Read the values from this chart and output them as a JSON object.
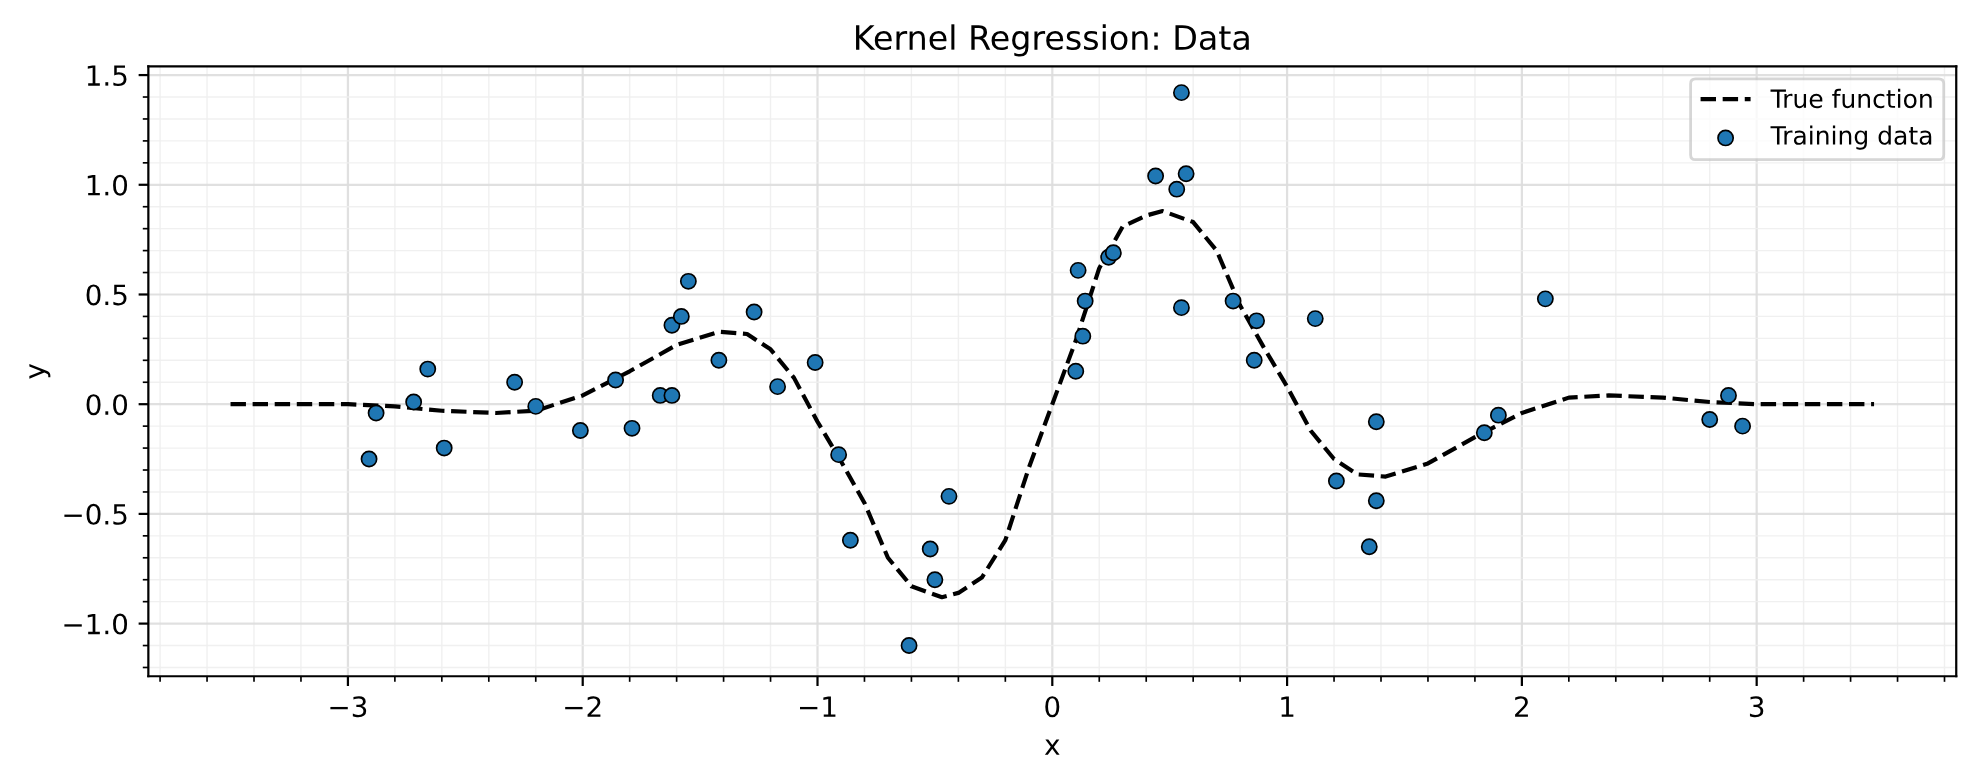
{
  "chart_data": {
    "type": "scatter",
    "title": "Kernel Regression: Data",
    "xlabel": "x",
    "ylabel": "y",
    "xlim": [
      -3.85,
      3.85
    ],
    "ylim": [
      -1.24,
      1.54
    ],
    "xticks": [
      {
        "value": -3,
        "label": "−3"
      },
      {
        "value": -2,
        "label": "−2"
      },
      {
        "value": -1,
        "label": "−1"
      },
      0,
      1,
      2,
      3
    ],
    "yticks": [
      {
        "value": -1,
        "label": "−1.0"
      },
      {
        "value": -0.5,
        "label": "−0.5"
      },
      {
        "value": 0,
        "label": "0.0"
      },
      0.5,
      {
        "value": 1,
        "label": "1.0"
      },
      1.5
    ],
    "grid": true,
    "legend": "top right",
    "series": [
      {
        "name": "True function",
        "type": "line",
        "color": "#000000",
        "line_style": "dashed",
        "marker": "none",
        "x": [
          -3.5,
          -3.0,
          -2.8,
          -2.6,
          -2.37,
          -2.2,
          -2.0,
          -1.8,
          -1.6,
          -1.42,
          -1.3,
          -1.2,
          -1.1,
          -1.0,
          -0.9,
          -0.8,
          -0.7,
          -0.6,
          -0.47,
          -0.4,
          -0.3,
          -0.2,
          -0.1,
          0.0,
          0.1,
          0.2,
          0.3,
          0.4,
          0.47,
          0.6,
          0.7,
          0.8,
          0.9,
          1.0,
          1.1,
          1.2,
          1.3,
          1.42,
          1.6,
          1.8,
          2.0,
          2.2,
          2.37,
          2.6,
          2.8,
          3.0,
          3.5
        ],
        "values": [
          0.0,
          0.0,
          -0.01,
          -0.03,
          -0.04,
          -0.03,
          0.04,
          0.15,
          0.27,
          0.33,
          0.32,
          0.25,
          0.12,
          -0.08,
          -0.26,
          -0.45,
          -0.7,
          -0.83,
          -0.88,
          -0.86,
          -0.79,
          -0.62,
          -0.29,
          0.0,
          0.29,
          0.62,
          0.81,
          0.86,
          0.88,
          0.83,
          0.7,
          0.45,
          0.26,
          0.08,
          -0.12,
          -0.25,
          -0.32,
          -0.33,
          -0.27,
          -0.15,
          -0.04,
          0.03,
          0.04,
          0.03,
          0.01,
          0.0,
          0.0
        ]
      },
      {
        "name": "Training data",
        "color": "#1f77b4",
        "marker": "circle",
        "x": [
          -2.91,
          -2.88,
          -2.72,
          -2.66,
          -2.59,
          -2.29,
          -2.2,
          -2.01,
          -1.86,
          -1.79,
          -1.67,
          -1.62,
          -1.62,
          -1.58,
          -1.55,
          -1.42,
          -1.27,
          -1.17,
          -1.01,
          -0.91,
          -0.86,
          -0.61,
          -0.52,
          -0.5,
          -0.44,
          0.1,
          0.11,
          0.13,
          0.14,
          0.24,
          0.26,
          0.44,
          0.53,
          0.55,
          0.55,
          0.57,
          0.77,
          0.87,
          0.86,
          1.12,
          1.21,
          1.38,
          1.38,
          1.35,
          1.84,
          1.9,
          2.1,
          2.8,
          2.88,
          2.94
        ],
        "values": [
          -0.25,
          -0.04,
          0.01,
          0.16,
          -0.2,
          0.1,
          -0.01,
          -0.12,
          0.11,
          -0.11,
          0.04,
          0.04,
          0.36,
          0.4,
          0.56,
          0.2,
          0.42,
          0.08,
          0.19,
          -0.23,
          -0.62,
          -1.1,
          -0.66,
          -0.8,
          -0.42,
          0.15,
          0.61,
          0.31,
          0.47,
          0.67,
          0.69,
          1.04,
          0.98,
          0.44,
          1.42,
          1.05,
          0.47,
          0.38,
          0.2,
          0.39,
          -0.35,
          -0.08,
          -0.44,
          -0.65,
          -0.13,
          -0.05,
          0.48,
          -0.07,
          0.04,
          -0.1
        ]
      }
    ]
  }
}
